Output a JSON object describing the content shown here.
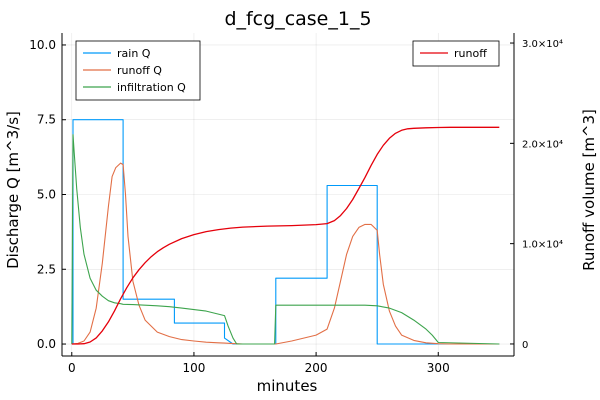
{
  "chart_data": {
    "type": "line",
    "title": "d_fcg_case_1_5",
    "xlabel": "minutes",
    "ylabel_left": "Discharge Q [m^3/s]",
    "ylabel_right": "Runoff volume [m^3]",
    "xlim": [
      -8,
      362
    ],
    "ylim_left": [
      -0.4,
      10.4
    ],
    "ylim_right": [
      -1200,
      31000
    ],
    "x_ticks": [
      "0",
      "100",
      "200",
      "300"
    ],
    "y_ticks_left": [
      "0.0",
      "2.5",
      "5.0",
      "7.5",
      "10.0"
    ],
    "y_ticks_right": [
      "0",
      "1.0×10⁴",
      "2.0×10⁴",
      "3.0×10⁴"
    ],
    "grid": true,
    "legend_left_placement": "top-left",
    "legend_right_placement": "top-right",
    "series_left": [
      {
        "name": "rain Q",
        "color": "#009AFA",
        "x": [
          0,
          1,
          1,
          42,
          42,
          84,
          84,
          125,
          125,
          132,
          132,
          167,
          167,
          209,
          209,
          250,
          250,
          350
        ],
        "values": [
          0,
          0,
          7.5,
          7.5,
          1.5,
          1.5,
          0.7,
          0.7,
          0.2,
          0.0,
          0.0,
          0.0,
          2.2,
          2.2,
          5.3,
          5.3,
          0.0,
          0.0
        ]
      },
      {
        "name": "runoff Q",
        "color": "#E26F46",
        "x": [
          0,
          5,
          10,
          15,
          20,
          25,
          30,
          33,
          36,
          40,
          42,
          44,
          46,
          50,
          55,
          60,
          70,
          80,
          90,
          100,
          110,
          120,
          125,
          130,
          135,
          140,
          167,
          180,
          200,
          209,
          215,
          220,
          225,
          230,
          235,
          240,
          245,
          250,
          252,
          255,
          260,
          265,
          270,
          280,
          290,
          300,
          310,
          350
        ],
        "values": [
          0,
          0.02,
          0.1,
          0.4,
          1.2,
          2.7,
          4.6,
          5.6,
          5.9,
          6.05,
          6.0,
          5.0,
          3.6,
          2.1,
          1.3,
          0.8,
          0.4,
          0.25,
          0.15,
          0.1,
          0.06,
          0.04,
          0.03,
          0.02,
          0.01,
          0,
          0,
          0.1,
          0.3,
          0.5,
          1.2,
          2.1,
          3.0,
          3.6,
          3.9,
          4.0,
          4.0,
          3.8,
          3.0,
          2.0,
          1.1,
          0.6,
          0.3,
          0.12,
          0.04,
          0.01,
          0,
          0
        ]
      },
      {
        "name": "infiltration Q",
        "color": "#3DA44D",
        "x": [
          0,
          1,
          2,
          4,
          7,
          10,
          15,
          20,
          25,
          30,
          35,
          40,
          42,
          50,
          60,
          70,
          80,
          90,
          100,
          110,
          115,
          120,
          125,
          128,
          132,
          135,
          166,
          167,
          200,
          240,
          250,
          260,
          270,
          280,
          290,
          295,
          300,
          350
        ],
        "values": [
          0,
          7.0,
          6.4,
          5.2,
          3.9,
          3.0,
          2.2,
          1.8,
          1.6,
          1.45,
          1.38,
          1.35,
          1.33,
          1.32,
          1.3,
          1.28,
          1.25,
          1.2,
          1.15,
          1.1,
          1.05,
          1.0,
          0.95,
          0.6,
          0.2,
          0.0,
          0.0,
          1.3,
          1.3,
          1.3,
          1.28,
          1.2,
          1.05,
          0.8,
          0.5,
          0.3,
          0.05,
          0.0
        ]
      }
    ],
    "series_right": [
      {
        "name": "runoff",
        "color": "#E5000B",
        "x": [
          0,
          5,
          10,
          15,
          20,
          25,
          30,
          35,
          40,
          45,
          50,
          55,
          60,
          65,
          70,
          75,
          80,
          90,
          100,
          110,
          120,
          130,
          140,
          160,
          180,
          200,
          209,
          215,
          220,
          225,
          230,
          235,
          240,
          245,
          250,
          255,
          260,
          265,
          270,
          275,
          280,
          290,
          300,
          310,
          320,
          350
        ],
        "values": [
          0,
          0,
          30,
          200,
          600,
          1300,
          2200,
          3300,
          4500,
          5600,
          6600,
          7400,
          8100,
          8700,
          9200,
          9600,
          9950,
          10500,
          10900,
          11200,
          11400,
          11550,
          11650,
          11750,
          11800,
          11900,
          12000,
          12300,
          12800,
          13500,
          14400,
          15500,
          16600,
          17800,
          18900,
          19800,
          20500,
          21000,
          21300,
          21450,
          21500,
          21550,
          21580,
          21600,
          21600,
          21600
        ]
      }
    ]
  }
}
